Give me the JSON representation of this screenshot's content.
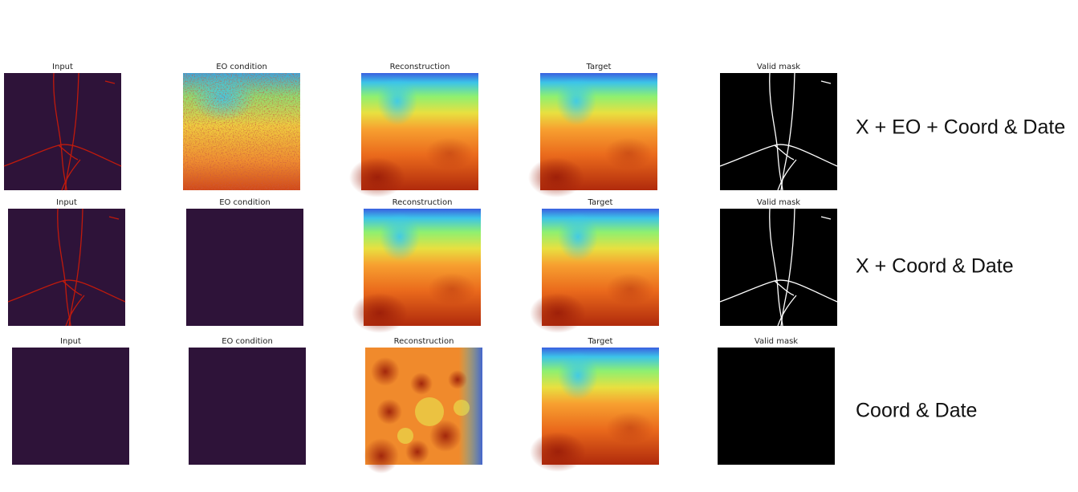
{
  "rows": [
    {
      "label": "X + EO + Coord & Date",
      "panels": [
        "Input",
        "EO condition",
        "Reconstruction",
        "Target",
        "Valid mask"
      ]
    },
    {
      "label": "X + Coord & Date",
      "panels": [
        "Input",
        "EO condition",
        "Reconstruction",
        "Target",
        "Valid mask"
      ]
    },
    {
      "label": "Coord & Date",
      "panels": [
        "Input",
        "EO condition",
        "Reconstruction",
        "Target",
        "Valid mask"
      ]
    }
  ]
}
